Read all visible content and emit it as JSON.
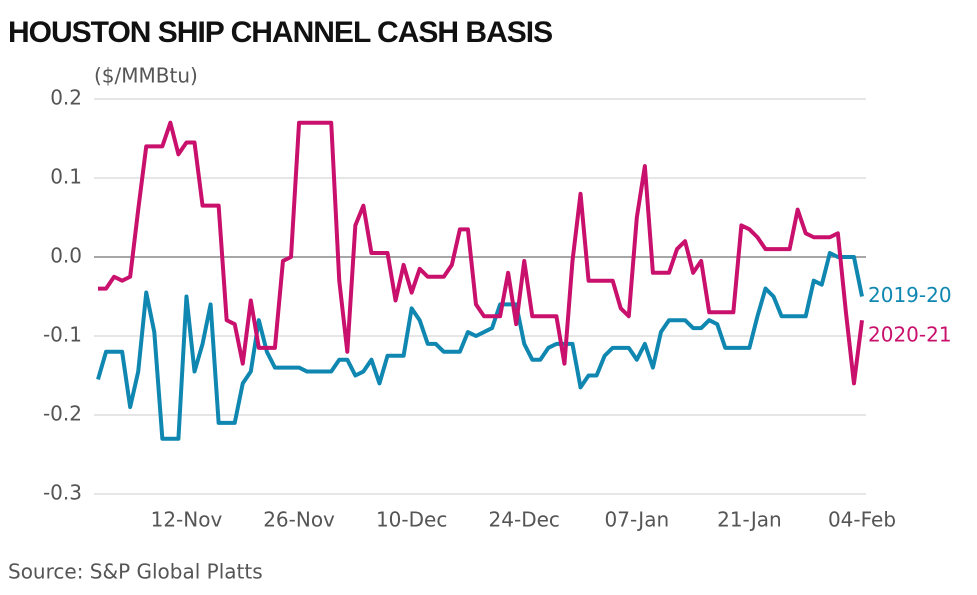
{
  "chart_data": {
    "type": "line",
    "title": "HOUSTON SHIP CHANNEL CASH BASIS",
    "y_label": "($/MMBtu)",
    "source": "Source: S&P Global Platts",
    "categories": [
      null,
      null,
      null,
      null,
      null,
      null,
      null,
      null,
      null,
      null,
      null,
      "12-Nov",
      null,
      null,
      null,
      null,
      null,
      null,
      null,
      null,
      null,
      null,
      null,
      null,
      null,
      "26-Nov",
      null,
      null,
      null,
      null,
      null,
      null,
      null,
      null,
      null,
      null,
      null,
      null,
      null,
      "10-Dec",
      null,
      null,
      null,
      null,
      null,
      null,
      null,
      null,
      null,
      null,
      null,
      null,
      null,
      "24-Dec",
      null,
      null,
      null,
      null,
      null,
      null,
      null,
      null,
      null,
      null,
      null,
      null,
      null,
      "07-Jan",
      null,
      null,
      null,
      null,
      null,
      null,
      null,
      null,
      null,
      null,
      null,
      null,
      null,
      "21-Jan",
      null,
      null,
      null,
      null,
      null,
      null,
      null,
      null,
      null,
      null,
      null,
      null,
      null,
      "04-Feb"
    ],
    "series": [
      {
        "name": "2019-20",
        "color": "#0f87b1",
        "values": [
          -0.155,
          -0.12,
          -0.12,
          -0.12,
          -0.19,
          -0.145,
          -0.045,
          -0.095,
          -0.23,
          -0.23,
          -0.23,
          -0.05,
          -0.145,
          -0.11,
          -0.06,
          -0.21,
          -0.21,
          -0.21,
          -0.16,
          -0.145,
          -0.08,
          -0.12,
          -0.14,
          -0.14,
          -0.14,
          -0.14,
          -0.145,
          -0.145,
          -0.145,
          -0.145,
          -0.13,
          -0.13,
          -0.15,
          -0.145,
          -0.13,
          -0.16,
          -0.125,
          -0.125,
          -0.125,
          -0.065,
          -0.08,
          -0.11,
          -0.11,
          -0.12,
          -0.12,
          -0.12,
          -0.095,
          -0.1,
          -0.095,
          -0.09,
          -0.06,
          -0.06,
          -0.06,
          -0.11,
          -0.13,
          -0.13,
          -0.115,
          -0.11,
          -0.11,
          -0.11,
          -0.165,
          -0.15,
          -0.15,
          -0.125,
          -0.115,
          -0.115,
          -0.115,
          -0.13,
          -0.11,
          -0.14,
          -0.095,
          -0.08,
          -0.08,
          -0.08,
          -0.09,
          -0.09,
          -0.08,
          -0.085,
          -0.115,
          -0.115,
          -0.115,
          -0.115,
          -0.075,
          -0.04,
          -0.05,
          -0.075,
          -0.075,
          -0.075,
          -0.075,
          -0.03,
          -0.035,
          0.005,
          0,
          0,
          0,
          -0.05
        ]
      },
      {
        "name": "2020-21",
        "color": "#c8106c",
        "values": [
          -0.04,
          -0.04,
          -0.025,
          -0.03,
          -0.025,
          0.06,
          0.14,
          0.14,
          0.14,
          0.17,
          0.13,
          0.145,
          0.145,
          0.065,
          0.065,
          0.065,
          -0.08,
          -0.085,
          -0.135,
          -0.055,
          -0.115,
          -0.115,
          -0.115,
          -0.005,
          0,
          0.17,
          0.17,
          0.17,
          0.17,
          0.17,
          -0.03,
          -0.12,
          0.04,
          0.065,
          0.005,
          0.005,
          0.005,
          -0.055,
          -0.01,
          -0.045,
          -0.015,
          -0.025,
          -0.025,
          -0.025,
          -0.01,
          0.035,
          0.035,
          -0.06,
          -0.075,
          -0.075,
          -0.075,
          -0.02,
          -0.085,
          -0.005,
          -0.075,
          -0.075,
          -0.075,
          -0.075,
          -0.135,
          -0.005,
          0.08,
          -0.03,
          -0.03,
          -0.03,
          -0.03,
          -0.065,
          -0.075,
          0.05,
          0.115,
          -0.02,
          -0.02,
          -0.02,
          0.01,
          0.02,
          -0.02,
          -0.005,
          -0.07,
          -0.07,
          -0.07,
          -0.07,
          0.04,
          0.035,
          0.025,
          0.01,
          0.01,
          0.01,
          0.01,
          0.06,
          0.03,
          0.025,
          0.025,
          0.025,
          0.03,
          -0.07,
          -0.16,
          -0.08
        ]
      }
    ],
    "ylim": [
      -0.3,
      0.2
    ],
    "yticks": [
      0.2,
      0.1,
      {
        "value": 0,
        "label": "0.0"
      },
      -0.1,
      -0.2,
      -0.3
    ],
    "grid": true
  }
}
